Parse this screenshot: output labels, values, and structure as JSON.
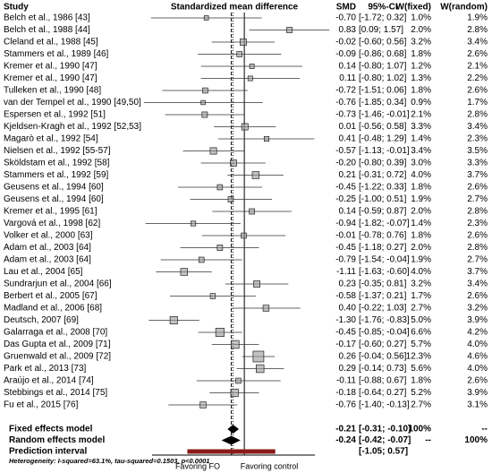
{
  "chart_data": {
    "type": "forest",
    "title": "Standardized mean difference",
    "columns": {
      "study": "Study",
      "smd": "SMD",
      "ci": "95%-CI",
      "w_fixed": "W(fixed)",
      "w_random": "W(random)"
    },
    "xlim": [
      -1.7,
      1.3
    ],
    "color": "#999999",
    "prediction_color": "#8b1a1a",
    "x_labels": [
      "Favoring FO",
      "Favoring control"
    ],
    "heterogeneity": "Heterogeneity: I-squared=63.1%, tau-squared=0.1503, p<0.0001",
    "studies": [
      {
        "name": "Belch et al., 1986 [43]",
        "smd": -0.7,
        "smd_label": "-0.70",
        "lower": -1.72,
        "upper": 0.32,
        "ci_label": "[-1.72; 0.32]",
        "w_fixed": 1.0,
        "w_fixed_label": "1.0%",
        "w_random": 1.9,
        "w_random_label": "1.9%"
      },
      {
        "name": "Belch et al., 1988 [44]",
        "smd": 0.83,
        "smd_label": "0.83",
        "lower": 0.09,
        "upper": 1.57,
        "ci_label": "[0.09; 1.57]",
        "w_fixed": 2.0,
        "w_fixed_label": "2.0%",
        "w_random": 2.8,
        "w_random_label": "2.8%"
      },
      {
        "name": "Cleland et al., 1988 [45]",
        "smd": -0.02,
        "smd_label": "-0.02",
        "lower": -0.6,
        "upper": 0.56,
        "ci_label": "[-0.60; 0.56]",
        "w_fixed": 3.2,
        "w_fixed_label": "3.2%",
        "w_random": 3.4,
        "w_random_label": "3.4%"
      },
      {
        "name": "Stammers et al., 1989 [46]",
        "smd": -0.09,
        "smd_label": "-0.09",
        "lower": -0.86,
        "upper": 0.68,
        "ci_label": "[-0.86; 0.68]",
        "w_fixed": 1.8,
        "w_fixed_label": "1.8%",
        "w_random": 2.6,
        "w_random_label": "2.6%"
      },
      {
        "name": "Kremer et al., 1990 [47]",
        "smd": 0.14,
        "smd_label": "0.14",
        "lower": -0.8,
        "upper": 1.07,
        "ci_label": "[-0.80; 1.07]",
        "w_fixed": 1.2,
        "w_fixed_label": "1.2%",
        "w_random": 2.1,
        "w_random_label": "2.1%"
      },
      {
        "name": "Kremer et al., 1990 [47]",
        "smd": 0.11,
        "smd_label": "0.11",
        "lower": -0.8,
        "upper": 1.02,
        "ci_label": "[-0.80; 1.02]",
        "w_fixed": 1.3,
        "w_fixed_label": "1.3%",
        "w_random": 2.2,
        "w_random_label": "2.2%"
      },
      {
        "name": "Tulleken et al., 1990 [48]",
        "smd": -0.72,
        "smd_label": "-0.72",
        "lower": -1.51,
        "upper": 0.06,
        "ci_label": "[-1.51; 0.06]",
        "w_fixed": 1.8,
        "w_fixed_label": "1.8%",
        "w_random": 2.6,
        "w_random_label": "2.6%"
      },
      {
        "name": "van der Tempel et al., 1990 [49,50]",
        "smd": -0.76,
        "smd_label": "-0.76",
        "lower": -1.85,
        "upper": 0.34,
        "ci_label": "[-1.85; 0.34]",
        "w_fixed": 0.9,
        "w_fixed_label": "0.9%",
        "w_random": 1.7,
        "w_random_label": "1.7%"
      },
      {
        "name": "Espersen et al., 1992 [51]",
        "smd": -0.73,
        "smd_label": "-0.73",
        "lower": -1.46,
        "upper": -0.01,
        "ci_label": "[-1.46; -0.01]",
        "w_fixed": 2.1,
        "w_fixed_label": "2.1%",
        "w_random": 2.8,
        "w_random_label": "2.8%"
      },
      {
        "name": "Kjeldsen-Kragh et al., 1992 [52,53]",
        "smd": 0.01,
        "smd_label": "0.01",
        "lower": -0.56,
        "upper": 0.58,
        "ci_label": "[-0.56; 0.58]",
        "w_fixed": 3.3,
        "w_fixed_label": "3.3%",
        "w_random": 3.4,
        "w_random_label": "3.4%"
      },
      {
        "name": "Magarò et al., 1992 [54]",
        "smd": 0.41,
        "smd_label": "0.41",
        "lower": -0.48,
        "upper": 1.29,
        "ci_label": "[-0.48; 1.29]",
        "w_fixed": 1.4,
        "w_fixed_label": "1.4%",
        "w_random": 2.3,
        "w_random_label": "2.3%"
      },
      {
        "name": "Nielsen et al., 1992 [55-57]",
        "smd": -0.57,
        "smd_label": "-0.57",
        "lower": -1.13,
        "upper": -0.01,
        "ci_label": "[-1.13; -0.01]",
        "w_fixed": 3.4,
        "w_fixed_label": "3.4%",
        "w_random": 3.5,
        "w_random_label": "3.5%"
      },
      {
        "name": "Sköldstam et al., 1992 [58]",
        "smd": -0.2,
        "smd_label": "-0.20",
        "lower": -0.8,
        "upper": 0.39,
        "ci_label": "[-0.80; 0.39]",
        "w_fixed": 3.0,
        "w_fixed_label": "3.0%",
        "w_random": 3.3,
        "w_random_label": "3.3%"
      },
      {
        "name": "Stammers et al., 1992 [59]",
        "smd": 0.21,
        "smd_label": "0.21",
        "lower": -0.31,
        "upper": 0.72,
        "ci_label": "[-0.31; 0.72]",
        "w_fixed": 4.0,
        "w_fixed_label": "4.0%",
        "w_random": 3.7,
        "w_random_label": "3.7%"
      },
      {
        "name": "Geusens et al., 1994 [60]",
        "smd": -0.45,
        "smd_label": "-0.45",
        "lower": -1.22,
        "upper": 0.33,
        "ci_label": "[-1.22; 0.33]",
        "w_fixed": 1.8,
        "w_fixed_label": "1.8%",
        "w_random": 2.6,
        "w_random_label": "2.6%"
      },
      {
        "name": "Geusens et al., 1994 [60]",
        "smd": -0.25,
        "smd_label": "-0.25",
        "lower": -1.0,
        "upper": 0.51,
        "ci_label": "[-1.00; 0.51]",
        "w_fixed": 1.9,
        "w_fixed_label": "1.9%",
        "w_random": 2.7,
        "w_random_label": "2.7%"
      },
      {
        "name": "Kremer et al., 1995 [61]",
        "smd": 0.14,
        "smd_label": "0.14",
        "lower": -0.59,
        "upper": 0.87,
        "ci_label": "[-0.59; 0.87]",
        "w_fixed": 2.0,
        "w_fixed_label": "2.0%",
        "w_random": 2.8,
        "w_random_label": "2.8%"
      },
      {
        "name": "Vargová et al., 1998 [62]",
        "smd": -0.94,
        "smd_label": "-0.94",
        "lower": -1.82,
        "upper": -0.07,
        "ci_label": "[-1.82; -0.07]",
        "w_fixed": 1.4,
        "w_fixed_label": "1.4%",
        "w_random": 2.3,
        "w_random_label": "2.3%"
      },
      {
        "name": "Volker et al., 2000 [63]",
        "smd": -0.01,
        "smd_label": "-0.01",
        "lower": -0.78,
        "upper": 0.76,
        "ci_label": "[-0.78; 0.76]",
        "w_fixed": 1.8,
        "w_fixed_label": "1.8%",
        "w_random": 2.6,
        "w_random_label": "2.6%"
      },
      {
        "name": "Adam et al., 2003 [64]",
        "smd": -0.45,
        "smd_label": "-0.45",
        "lower": -1.18,
        "upper": 0.27,
        "ci_label": "[-1.18; 0.27]",
        "w_fixed": 2.0,
        "w_fixed_label": "2.0%",
        "w_random": 2.8,
        "w_random_label": "2.8%"
      },
      {
        "name": "Adam et al., 2003 [64]",
        "smd": -0.79,
        "smd_label": "-0.79",
        "lower": -1.54,
        "upper": -0.04,
        "ci_label": "[-1.54; -0.04]",
        "w_fixed": 1.9,
        "w_fixed_label": "1.9%",
        "w_random": 2.7,
        "w_random_label": "2.7%"
      },
      {
        "name": "Lau et al., 2004 [65]",
        "smd": -1.11,
        "smd_label": "-1.11",
        "lower": -1.63,
        "upper": -0.6,
        "ci_label": "[-1.63; -0.60]",
        "w_fixed": 4.0,
        "w_fixed_label": "4.0%",
        "w_random": 3.7,
        "w_random_label": "3.7%"
      },
      {
        "name": "Sundrarjun et al., 2004 [66]",
        "smd": 0.23,
        "smd_label": "0.23",
        "lower": -0.35,
        "upper": 0.81,
        "ci_label": "[-0.35; 0.81]",
        "w_fixed": 3.2,
        "w_fixed_label": "3.2%",
        "w_random": 3.4,
        "w_random_label": "3.4%"
      },
      {
        "name": "Berbert et al., 2005 [67]",
        "smd": -0.58,
        "smd_label": "-0.58",
        "lower": -1.37,
        "upper": 0.21,
        "ci_label": "[-1.37; 0.21]",
        "w_fixed": 1.7,
        "w_fixed_label": "1.7%",
        "w_random": 2.6,
        "w_random_label": "2.6%"
      },
      {
        "name": "Madland et al., 2006 [68]",
        "smd": 0.4,
        "smd_label": "0.40",
        "lower": -0.22,
        "upper": 1.03,
        "ci_label": "[-0.22; 1.03]",
        "w_fixed": 2.7,
        "w_fixed_label": "2.7%",
        "w_random": 3.2,
        "w_random_label": "3.2%"
      },
      {
        "name": "Deutsch, 2007 [69]",
        "smd": -1.3,
        "smd_label": "-1.30",
        "lower": -1.76,
        "upper": -0.83,
        "ci_label": "[-1.76; -0.83]",
        "w_fixed": 5.0,
        "w_fixed_label": "5.0%",
        "w_random": 3.9,
        "w_random_label": "3.9%"
      },
      {
        "name": "Galarraga et al., 2008 [70]",
        "smd": -0.45,
        "smd_label": "-0.45",
        "lower": -0.85,
        "upper": -0.04,
        "ci_label": "[-0.85; -0.04]",
        "w_fixed": 6.6,
        "w_fixed_label": "6.6%",
        "w_random": 4.2,
        "w_random_label": "4.2%"
      },
      {
        "name": "Das Gupta et al., 2009 [71]",
        "smd": -0.17,
        "smd_label": "-0.17",
        "lower": -0.6,
        "upper": 0.27,
        "ci_label": "[-0.60; 0.27]",
        "w_fixed": 5.7,
        "w_fixed_label": "5.7%",
        "w_random": 4.0,
        "w_random_label": "4.0%"
      },
      {
        "name": "Gruenwald et al., 2009 [72]",
        "smd": 0.26,
        "smd_label": "0.26",
        "lower": -0.04,
        "upper": 0.56,
        "ci_label": "[-0.04; 0.56]",
        "w_fixed": 12.3,
        "w_fixed_label": "12.3%",
        "w_random": 4.6,
        "w_random_label": "4.6%"
      },
      {
        "name": "Park et al., 2013 [73]",
        "smd": 0.29,
        "smd_label": "0.29",
        "lower": -0.14,
        "upper": 0.73,
        "ci_label": "[-0.14; 0.73]",
        "w_fixed": 5.6,
        "w_fixed_label": "5.6%",
        "w_random": 4.0,
        "w_random_label": "4.0%"
      },
      {
        "name": "Araújo et al., 2014 [74]",
        "smd": -0.11,
        "smd_label": "-0.11",
        "lower": -0.88,
        "upper": 0.67,
        "ci_label": "[-0.88; 0.67]",
        "w_fixed": 1.8,
        "w_fixed_label": "1.8%",
        "w_random": 2.6,
        "w_random_label": "2.6%"
      },
      {
        "name": "Stebbings et al., 2014 [75]",
        "smd": -0.18,
        "smd_label": "-0.18",
        "lower": -0.64,
        "upper": 0.27,
        "ci_label": "[-0.64; 0.27]",
        "w_fixed": 5.2,
        "w_fixed_label": "5.2%",
        "w_random": 3.9,
        "w_random_label": "3.9%"
      },
      {
        "name": "Fu et al., 2015 [76]",
        "smd": -0.76,
        "smd_label": "-0.76",
        "lower": -1.4,
        "upper": -0.13,
        "ci_label": "[-1.40; -0.13]",
        "w_fixed": 2.7,
        "w_fixed_label": "2.7%",
        "w_random": 3.1,
        "w_random_label": "3.1%"
      }
    ],
    "summaries": [
      {
        "name": "Fixed effects model",
        "smd": -0.21,
        "smd_label": "-0.21",
        "lower": -0.31,
        "upper": -0.1,
        "ci_label": "[-0.31; -0.10]",
        "w_fixed": 100,
        "w_fixed_label": "100%",
        "w_random_label": "--"
      },
      {
        "name": "Random effects model",
        "smd": -0.24,
        "smd_label": "-0.24",
        "lower": -0.42,
        "upper": -0.07,
        "ci_label": "[-0.42; -0.07]",
        "w_fixed_label": "--",
        "w_random": 100,
        "w_random_label": "100%"
      }
    ],
    "prediction": {
      "name": "Prediction interval",
      "lower": -1.05,
      "upper": 0.57,
      "ci_label": "[-1.05; 0.57]"
    }
  }
}
